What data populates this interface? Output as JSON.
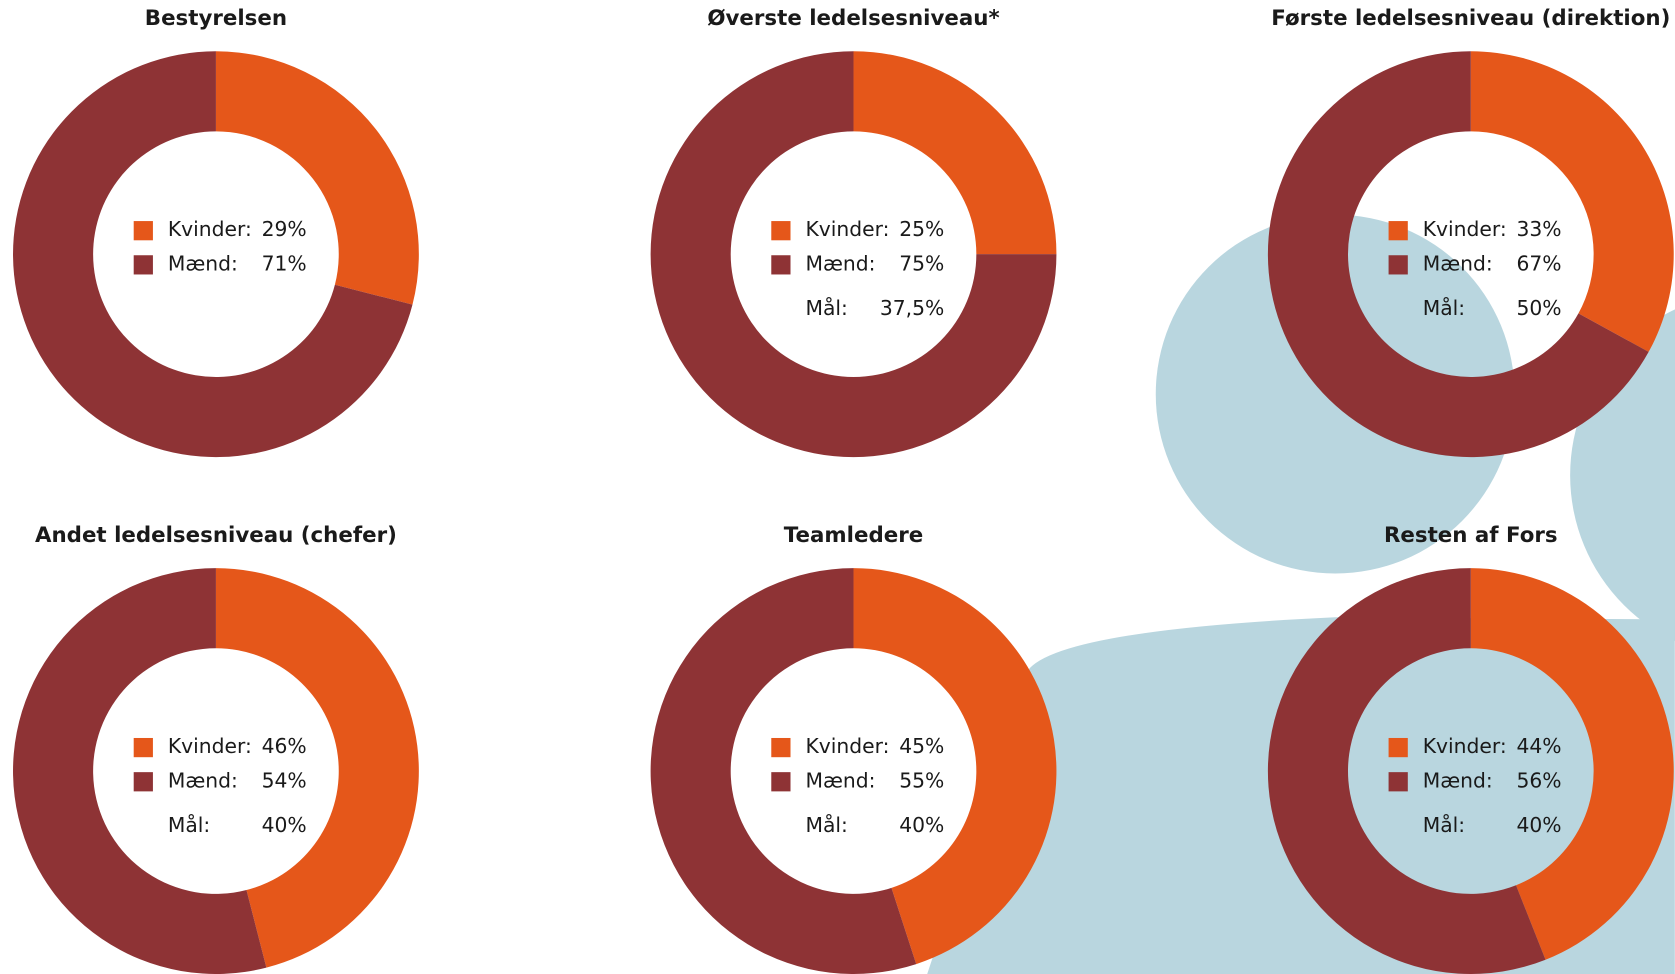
{
  "chart_data": [
    {
      "type": "pie",
      "title": "Bestyrelsen",
      "categories": [
        "Kvinder:",
        "Mænd:"
      ],
      "values": [
        29,
        71
      ],
      "value_labels": [
        "29%",
        "71%"
      ],
      "colors": [
        "#e5571a",
        "#8e3335"
      ]
    },
    {
      "type": "pie",
      "title": "Øverste ledelsesniveau*",
      "categories": [
        "Kvinder:",
        "Mænd:"
      ],
      "values": [
        25,
        75
      ],
      "value_labels": [
        "25%",
        "75%"
      ],
      "colors": [
        "#e5571a",
        "#8e3335"
      ],
      "goal_label": "Mål:",
      "goal": "37,5%"
    },
    {
      "type": "pie",
      "title": "Første ledelsesniveau (direktion)",
      "categories": [
        "Kvinder:",
        "Mænd:"
      ],
      "values": [
        33,
        67
      ],
      "value_labels": [
        "33%",
        "67%"
      ],
      "colors": [
        "#e5571a",
        "#8e3335"
      ],
      "goal_label": "Mål:",
      "goal": "50%"
    },
    {
      "type": "pie",
      "title": "Andet ledelsesniveau (chefer)",
      "categories": [
        "Kvinder:",
        "Mænd:"
      ],
      "values": [
        46,
        54
      ],
      "value_labels": [
        "46%",
        "54%"
      ],
      "colors": [
        "#e5571a",
        "#8e3335"
      ],
      "goal_label": "Mål:",
      "goal": "40%"
    },
    {
      "type": "pie",
      "title": "Teamledere",
      "categories": [
        "Kvinder:",
        "Mænd:"
      ],
      "values": [
        45,
        55
      ],
      "value_labels": [
        "45%",
        "55%"
      ],
      "colors": [
        "#e5571a",
        "#8e3335"
      ],
      "goal_label": "Mål:",
      "goal": "40%"
    },
    {
      "type": "pie",
      "title": "Resten af Fors",
      "categories": [
        "Kvinder:",
        "Mænd:"
      ],
      "values": [
        44,
        56
      ],
      "value_labels": [
        "44%",
        "56%"
      ],
      "colors": [
        "#e5571a",
        "#8e3335"
      ],
      "goal_label": "Mål:",
      "goal": "40%"
    }
  ]
}
